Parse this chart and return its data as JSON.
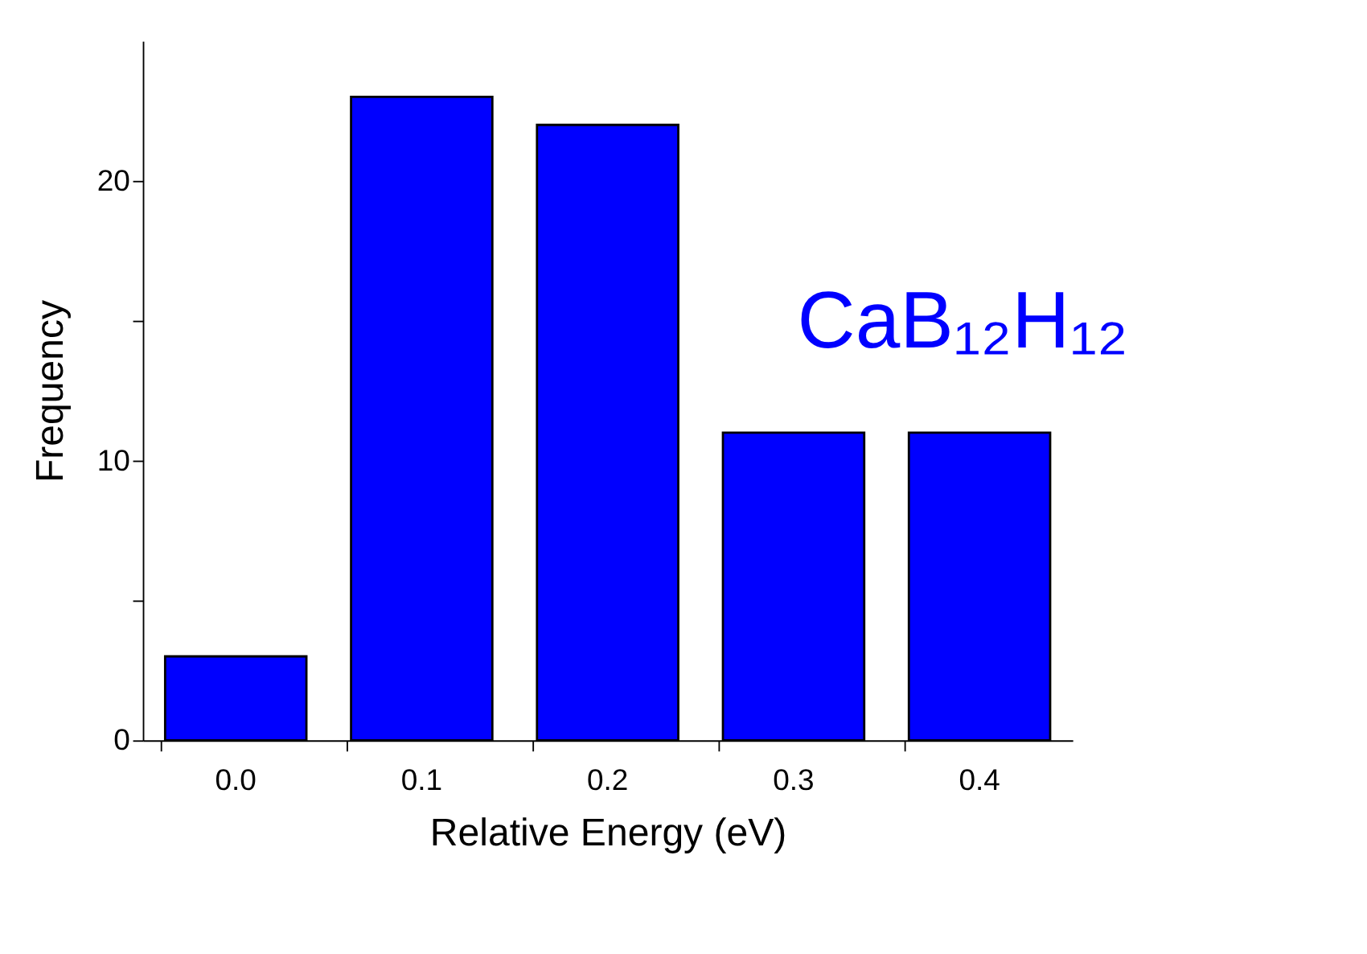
{
  "chart_data": {
    "type": "bar",
    "categories": [
      "0.0",
      "0.1",
      "0.2",
      "0.3",
      "0.4"
    ],
    "values": [
      3,
      23,
      22,
      11,
      11
    ],
    "color": "#0000ff",
    "xlabel": "Relative Energy (eV)",
    "ylabel": "Frequency",
    "ylim": [
      0,
      25
    ],
    "yticks": [
      0,
      {
        "value": 5,
        "label": null
      },
      10,
      {
        "value": 15,
        "label": null
      },
      20
    ],
    "annotations": [
      "CaB₁₂H₁₂"
    ],
    "grid": false
  }
}
